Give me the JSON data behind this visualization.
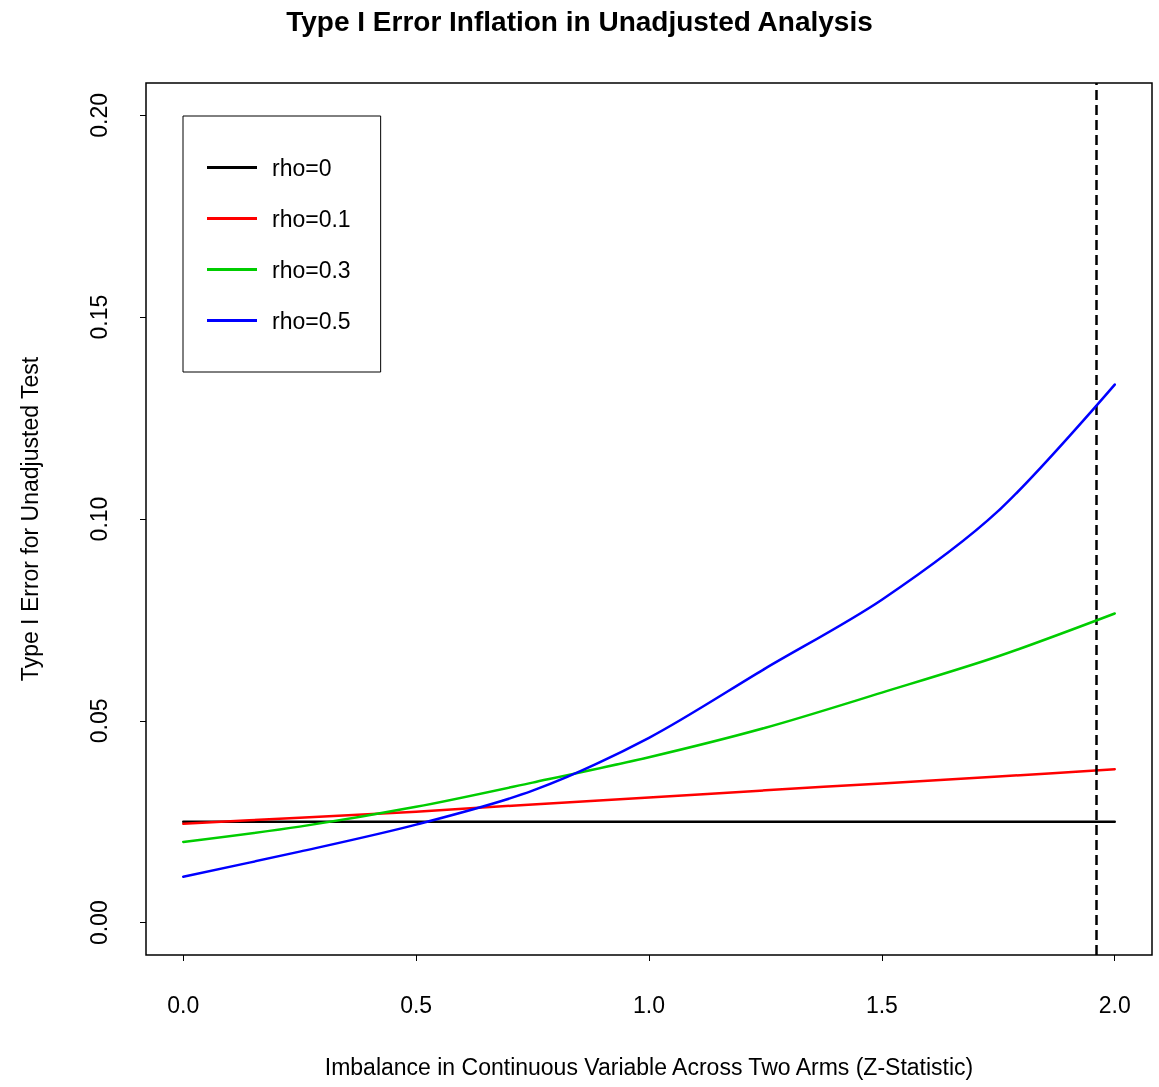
{
  "chart_data": {
    "type": "line",
    "title": "Type I Error Inflation in Unadjusted Analysis",
    "xlabel": "Imbalance in Continuous Variable Across Two Arms (Z-Statistic)",
    "ylabel": "Type I Error for Unadjusted Test",
    "x": [
      0,
      0.25,
      0.5,
      0.75,
      1.0,
      1.25,
      1.5,
      1.75,
      2.0
    ],
    "series": [
      {
        "name": "rho=0",
        "color": "#000000",
        "values": [
          0.025,
          0.025,
          0.025,
          0.025,
          0.025,
          0.025,
          0.025,
          0.025,
          0.025
        ]
      },
      {
        "name": "rho=0.1",
        "color": "#ff0000",
        "values": [
          0.0245,
          0.026,
          0.0275,
          0.0293,
          0.031,
          0.0328,
          0.0345,
          0.0362,
          0.038
        ]
      },
      {
        "name": "rho=0.3",
        "color": "#00cd00",
        "values": [
          0.02,
          0.0238,
          0.0287,
          0.0347,
          0.041,
          0.0483,
          0.057,
          0.066,
          0.0766
        ]
      },
      {
        "name": "rho=0.5",
        "color": "#0000ff",
        "values": [
          0.0114,
          0.0176,
          0.0243,
          0.0327,
          0.0458,
          0.063,
          0.08,
          0.102,
          0.1333
        ]
      }
    ],
    "xlim": [
      -0.08,
      2.08
    ],
    "ylim": [
      -0.008,
      0.208
    ],
    "xticks": [
      {
        "value": 0,
        "label": "0.0"
      },
      {
        "value": 0.5,
        "label": "0.5"
      },
      {
        "value": 1,
        "label": "1.0"
      },
      {
        "value": 1.5,
        "label": "1.5"
      },
      {
        "value": 2,
        "label": "2.0"
      }
    ],
    "yticks": [
      {
        "value": 0,
        "label": "0.00"
      },
      {
        "value": 0.05,
        "label": "0.05"
      },
      {
        "value": 0.1,
        "label": "0.10"
      },
      {
        "value": 0.15,
        "label": "0.15"
      },
      {
        "value": 0.2,
        "label": "0.20"
      }
    ],
    "ref_lines": [
      {
        "axis": "x",
        "value": 1.96,
        "color": "#000000",
        "line_style": "dashed"
      }
    ],
    "grid": false,
    "legend": "top left",
    "marker": "none",
    "line_style": "solid"
  }
}
